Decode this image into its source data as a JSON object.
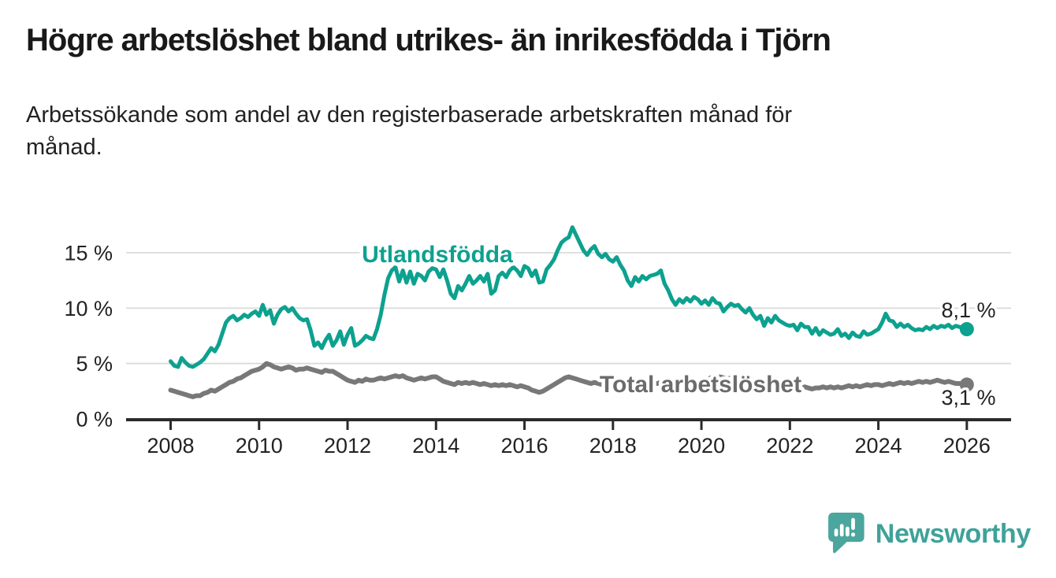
{
  "page": {
    "title": "Högre arbetslöshet bland utrikes- än inrikesfödda i Tjörn",
    "subtitle_lines": [
      "Arbetssökande som andel av den registerbaserade arbetskraften månad för",
      "månad."
    ]
  },
  "branding": {
    "logo_text": "Newsworthy",
    "logo_text_color": "#3EA29A",
    "logo_icon": "bar-chart-speech-bubble-icon",
    "logo_icon_color": "#4BA69D"
  },
  "chart_data": {
    "type": "line",
    "title": "Högre arbetslöshet bland utrikes- än inrikesfödda i Tjörn",
    "subtitle": "Arbetssökande som andel av den registerbaserade arbetskraften månad för månad.",
    "xlabel": "",
    "ylabel": "",
    "unit": "%",
    "grid": "horizontal-gridlines",
    "legend_position": "inline-labels-on-lines",
    "x_start": 2008,
    "x_interval_years": 0.08333333,
    "xlim": [
      2007,
      2027
    ],
    "ylim": [
      0,
      18
    ],
    "x_ticks": [
      2008,
      2010,
      2012,
      2014,
      2016,
      2018,
      2020,
      2022,
      2024,
      2026
    ],
    "y_ticks": [
      0,
      5,
      10,
      15
    ],
    "y_tick_suffix": " %",
    "gridline_color": "#d8d8d8",
    "axis_color": "#2b2b2b",
    "tick_label_color": "#222222",
    "series": [
      {
        "name": "Utlandsfödda",
        "color": "#0DA18F",
        "label_color": "#0DA18F",
        "end_label": "8,1 %",
        "end_value": 8.1,
        "values": [
          5.2,
          4.8,
          4.7,
          5.5,
          5.1,
          4.8,
          4.7,
          4.9,
          5.1,
          5.4,
          5.9,
          6.4,
          6.1,
          6.7,
          7.7,
          8.7,
          9.1,
          9.3,
          8.9,
          9.1,
          9.4,
          9.2,
          9.5,
          9.7,
          9.3,
          10.3,
          9.4,
          9.8,
          8.6,
          9.4,
          9.9,
          10.1,
          9.7,
          10,
          9.5,
          9.1,
          8.9,
          9,
          8,
          6.6,
          6.9,
          6.4,
          7.1,
          7.6,
          6.6,
          7.1,
          7.9,
          6.7,
          7.6,
          8.2,
          6.6,
          6.8,
          7.1,
          7.5,
          7.3,
          7.2,
          8.1,
          9.4,
          11.2,
          12.7,
          13.4,
          13.7,
          12.4,
          13.4,
          12.3,
          13.3,
          12.2,
          13.1,
          12.9,
          12.5,
          13.3,
          13.6,
          13.5,
          12.8,
          13.5,
          12.5,
          11.3,
          10.9,
          12,
          11.6,
          12.2,
          12.9,
          12.2,
          12.5,
          12.9,
          12.4,
          13.1,
          11.3,
          11.6,
          12.9,
          13.2,
          12.8,
          13.4,
          13.7,
          13.4,
          12.9,
          13.8,
          13.6,
          12.9,
          13.4,
          12.3,
          12.4,
          13.5,
          13.9,
          14.4,
          15.2,
          15.9,
          16.2,
          16.4,
          17.3,
          16.6,
          15.9,
          15.2,
          14.8,
          15.3,
          15.6,
          14.9,
          14.6,
          14.9,
          14.4,
          14.2,
          14.6,
          13.9,
          13.4,
          12.5,
          12,
          12.8,
          12.4,
          12.9,
          12.6,
          12.9,
          13,
          13.1,
          13.4,
          12.2,
          11.6,
          10.8,
          10.3,
          10.8,
          10.5,
          10.9,
          10.6,
          11,
          10.8,
          10.4,
          10.7,
          10.3,
          10.9,
          10.5,
          10.4,
          9.7,
          10.1,
          10.4,
          10.2,
          10.3,
          9.9,
          9.6,
          10,
          9.4,
          9,
          9.3,
          8.4,
          9.1,
          8.7,
          9.3,
          8.9,
          8.7,
          8.5,
          8.4,
          8.5,
          8,
          8.6,
          8.3,
          8.3,
          7.7,
          8.2,
          7.6,
          8,
          7.8,
          7.6,
          7.7,
          8.1,
          7.5,
          7.7,
          7.3,
          7.8,
          7.5,
          7.4,
          7.9,
          7.6,
          7.7,
          7.9,
          8.1,
          8.7,
          9.5,
          8.9,
          8.8,
          8.3,
          8.6,
          8.3,
          8.5,
          8.2,
          8,
          8.1,
          8,
          8.3,
          8.1,
          8.4,
          8.2,
          8.4,
          8.3,
          8.5,
          8.2,
          8.4,
          8.3,
          8.2,
          8.1
        ]
      },
      {
        "name": "Total arbetslöshet",
        "color": "#787878",
        "label_color": "#6b6b6b",
        "end_label": "3,1 %",
        "end_value": 3.1,
        "values": [
          2.6,
          2.5,
          2.4,
          2.3,
          2.2,
          2.1,
          2,
          2.1,
          2.1,
          2.3,
          2.4,
          2.6,
          2.5,
          2.7,
          2.9,
          3.1,
          3.3,
          3.4,
          3.6,
          3.7,
          3.9,
          4.1,
          4.3,
          4.4,
          4.5,
          4.7,
          5,
          4.9,
          4.7,
          4.6,
          4.5,
          4.6,
          4.7,
          4.6,
          4.4,
          4.5,
          4.5,
          4.6,
          4.5,
          4.4,
          4.3,
          4.2,
          4.4,
          4.3,
          4.3,
          4.1,
          3.9,
          3.7,
          3.5,
          3.4,
          3.3,
          3.5,
          3.4,
          3.6,
          3.5,
          3.5,
          3.6,
          3.7,
          3.6,
          3.7,
          3.8,
          3.9,
          3.8,
          3.9,
          3.7,
          3.6,
          3.5,
          3.6,
          3.7,
          3.6,
          3.7,
          3.8,
          3.8,
          3.6,
          3.4,
          3.3,
          3.2,
          3.1,
          3.3,
          3.2,
          3.3,
          3.2,
          3.3,
          3.2,
          3.1,
          3.2,
          3.1,
          3,
          3.1,
          3,
          3.1,
          3,
          3.1,
          3,
          2.9,
          3,
          2.9,
          2.8,
          2.6,
          2.5,
          2.4,
          2.5,
          2.7,
          2.9,
          3.1,
          3.3,
          3.5,
          3.7,
          3.8,
          3.7,
          3.6,
          3.5,
          3.4,
          3.3,
          3.2,
          3.3,
          3.2,
          3.1,
          3.2,
          3.1,
          3.1,
          3.2,
          3.1,
          3,
          2.9,
          3,
          3.1,
          3,
          3.1,
          3,
          3.1,
          3.2,
          3.2,
          3.3,
          3.2,
          3.1,
          3.2,
          3.3,
          3.4,
          3.3,
          3.4,
          3.3,
          3.4,
          3.3,
          3.3,
          3.4,
          3.6,
          3.8,
          3.7,
          3.8,
          3.7,
          3.6,
          3.7,
          3.6,
          3.5,
          3.6,
          3.5,
          3.6,
          3.5,
          3.4,
          3.3,
          3.2,
          3.1,
          3,
          3.1,
          3,
          2.9,
          3,
          2.9,
          3,
          2.9,
          2.8,
          2.9,
          2.8,
          2.7,
          2.8,
          2.8,
          2.9,
          2.8,
          2.9,
          2.8,
          2.9,
          2.8,
          2.9,
          3,
          2.9,
          3,
          2.9,
          3,
          3.1,
          3,
          3.1,
          3.1,
          3,
          3.1,
          3.2,
          3.1,
          3.2,
          3.3,
          3.2,
          3.3,
          3.2,
          3.3,
          3.4,
          3.3,
          3.4,
          3.3,
          3.4,
          3.5,
          3.4,
          3.3,
          3.4,
          3.3,
          3.2,
          3.2,
          3.1,
          3.1
        ]
      }
    ]
  }
}
